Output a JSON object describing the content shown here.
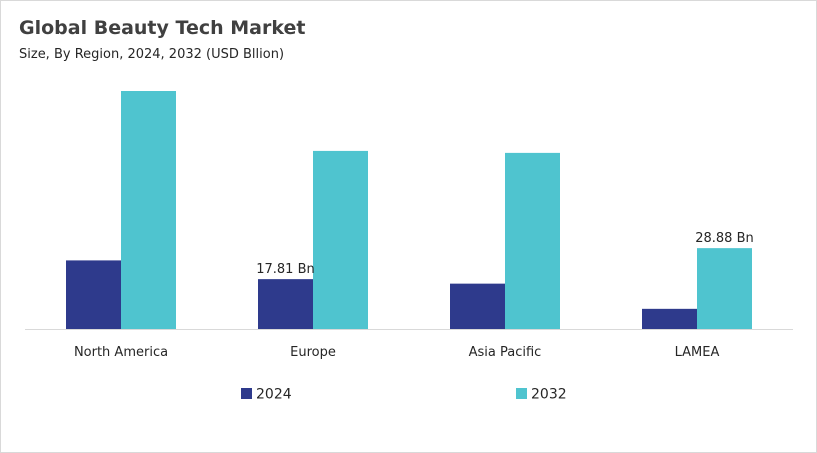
{
  "title": "Global Beauty Tech Market",
  "subtitle": "Size, By Region, 2024, 2032 (USD Bllion)",
  "chart_data": {
    "type": "bar",
    "categories": [
      "North America",
      "Europe",
      "Asia Pacific",
      "LAMEA"
    ],
    "series": [
      {
        "name": "2024",
        "color": "#2e3a8c",
        "values": [
          24.5,
          17.81,
          16.2,
          7.2
        ]
      },
      {
        "name": "2032",
        "color": "#4fc4cf",
        "values": [
          85.0,
          63.6,
          62.9,
          28.88
        ]
      }
    ],
    "data_labels": [
      {
        "series": 0,
        "category": 1,
        "text": "17.81 Bn"
      },
      {
        "series": 1,
        "category": 3,
        "text": "28.88 Bn"
      }
    ],
    "ylim": [
      0,
      90
    ],
    "grid": false,
    "legend_position": "bottom"
  }
}
